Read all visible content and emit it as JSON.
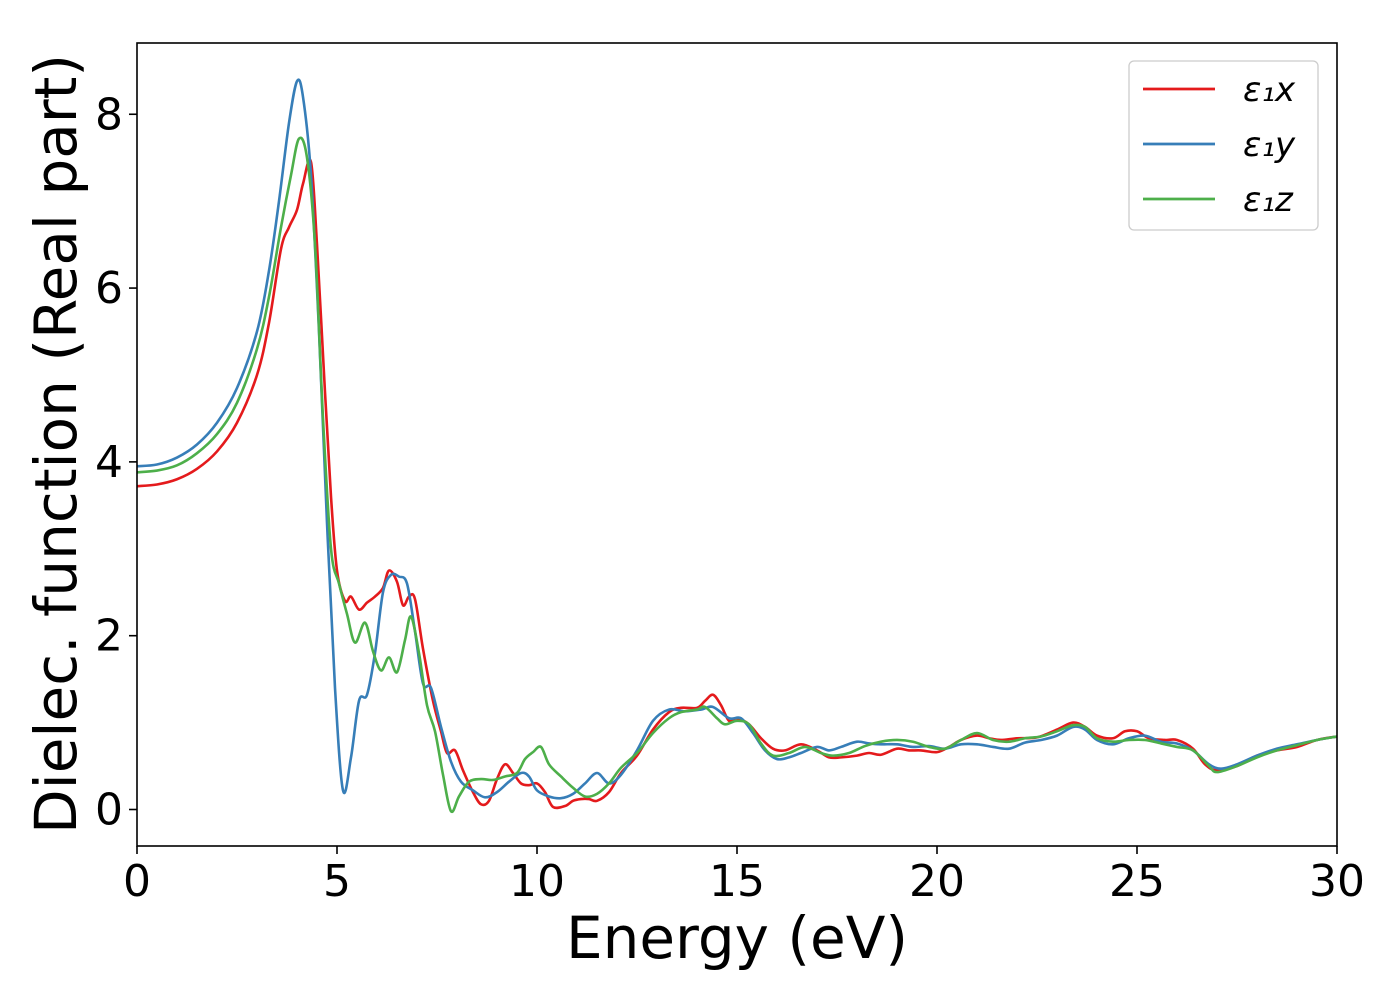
{
  "chart_data": {
    "type": "line",
    "xlabel": "Energy (eV)",
    "ylabel": "Dielec. function (Real part)",
    "xlim": [
      0,
      30
    ],
    "ylim": [
      -0.42,
      8.82
    ],
    "xticks": [
      0,
      5,
      10,
      15,
      20,
      25,
      30
    ],
    "yticks": [
      0,
      2,
      4,
      6,
      8
    ],
    "grid": false,
    "legend_position": "top-right",
    "series": [
      {
        "name": "ε₁x",
        "color": "#e41a1c",
        "points": [
          [
            0,
            3.72
          ],
          [
            0.5,
            3.74
          ],
          [
            1,
            3.8
          ],
          [
            1.5,
            3.92
          ],
          [
            2,
            4.12
          ],
          [
            2.5,
            4.45
          ],
          [
            3,
            5.0
          ],
          [
            3.3,
            5.6
          ],
          [
            3.6,
            6.45
          ],
          [
            3.8,
            6.7
          ],
          [
            4.0,
            6.9
          ],
          [
            4.15,
            7.2
          ],
          [
            4.35,
            7.45
          ],
          [
            4.5,
            6.5
          ],
          [
            4.7,
            4.8
          ],
          [
            4.85,
            3.6
          ],
          [
            5.0,
            2.75
          ],
          [
            5.2,
            2.4
          ],
          [
            5.35,
            2.45
          ],
          [
            5.55,
            2.3
          ],
          [
            5.75,
            2.38
          ],
          [
            5.95,
            2.45
          ],
          [
            6.15,
            2.55
          ],
          [
            6.3,
            2.75
          ],
          [
            6.5,
            2.62
          ],
          [
            6.65,
            2.35
          ],
          [
            6.8,
            2.45
          ],
          [
            6.95,
            2.42
          ],
          [
            7.15,
            1.85
          ],
          [
            7.4,
            1.25
          ],
          [
            7.6,
            0.9
          ],
          [
            7.75,
            0.65
          ],
          [
            7.95,
            0.68
          ],
          [
            8.15,
            0.45
          ],
          [
            8.4,
            0.2
          ],
          [
            8.6,
            0.06
          ],
          [
            8.8,
            0.1
          ],
          [
            9.0,
            0.35
          ],
          [
            9.2,
            0.52
          ],
          [
            9.4,
            0.42
          ],
          [
            9.6,
            0.3
          ],
          [
            9.8,
            0.28
          ],
          [
            10.0,
            0.3
          ],
          [
            10.2,
            0.2
          ],
          [
            10.4,
            0.03
          ],
          [
            10.7,
            0.04
          ],
          [
            10.9,
            0.1
          ],
          [
            11.1,
            0.12
          ],
          [
            11.3,
            0.12
          ],
          [
            11.5,
            0.1
          ],
          [
            11.8,
            0.2
          ],
          [
            12.1,
            0.42
          ],
          [
            12.5,
            0.62
          ],
          [
            12.9,
            0.92
          ],
          [
            13.3,
            1.12
          ],
          [
            13.6,
            1.17
          ],
          [
            14.0,
            1.17
          ],
          [
            14.2,
            1.25
          ],
          [
            14.4,
            1.32
          ],
          [
            14.6,
            1.2
          ],
          [
            14.8,
            1.02
          ],
          [
            15.0,
            1.05
          ],
          [
            15.3,
            0.98
          ],
          [
            15.6,
            0.82
          ],
          [
            15.9,
            0.7
          ],
          [
            16.2,
            0.68
          ],
          [
            16.6,
            0.75
          ],
          [
            17.0,
            0.68
          ],
          [
            17.3,
            0.6
          ],
          [
            17.6,
            0.6
          ],
          [
            18.0,
            0.62
          ],
          [
            18.3,
            0.65
          ],
          [
            18.6,
            0.63
          ],
          [
            19.0,
            0.7
          ],
          [
            19.3,
            0.68
          ],
          [
            19.6,
            0.68
          ],
          [
            20.0,
            0.66
          ],
          [
            20.3,
            0.72
          ],
          [
            20.6,
            0.8
          ],
          [
            21.0,
            0.85
          ],
          [
            21.3,
            0.82
          ],
          [
            21.6,
            0.8
          ],
          [
            22.0,
            0.82
          ],
          [
            22.5,
            0.83
          ],
          [
            23.0,
            0.92
          ],
          [
            23.4,
            1.0
          ],
          [
            23.7,
            0.95
          ],
          [
            24.0,
            0.85
          ],
          [
            24.4,
            0.82
          ],
          [
            24.7,
            0.9
          ],
          [
            25.0,
            0.9
          ],
          [
            25.3,
            0.82
          ],
          [
            25.7,
            0.8
          ],
          [
            26.0,
            0.8
          ],
          [
            26.4,
            0.7
          ],
          [
            26.7,
            0.52
          ],
          [
            27.0,
            0.45
          ],
          [
            27.5,
            0.5
          ],
          [
            28.0,
            0.62
          ],
          [
            28.5,
            0.68
          ],
          [
            29.0,
            0.72
          ],
          [
            29.5,
            0.8
          ],
          [
            30,
            0.84
          ]
        ]
      },
      {
        "name": "ε₁y",
        "color": "#377eb8",
        "points": [
          [
            0,
            3.95
          ],
          [
            0.5,
            3.97
          ],
          [
            1,
            4.05
          ],
          [
            1.5,
            4.2
          ],
          [
            2,
            4.45
          ],
          [
            2.5,
            4.85
          ],
          [
            3,
            5.5
          ],
          [
            3.3,
            6.2
          ],
          [
            3.55,
            7.0
          ],
          [
            3.8,
            7.9
          ],
          [
            4.0,
            8.38
          ],
          [
            4.15,
            8.2
          ],
          [
            4.35,
            7.3
          ],
          [
            4.55,
            5.5
          ],
          [
            4.75,
            3.3
          ],
          [
            4.95,
            1.4
          ],
          [
            5.15,
            0.22
          ],
          [
            5.35,
            0.6
          ],
          [
            5.55,
            1.25
          ],
          [
            5.75,
            1.32
          ],
          [
            5.95,
            1.8
          ],
          [
            6.15,
            2.5
          ],
          [
            6.35,
            2.7
          ],
          [
            6.55,
            2.68
          ],
          [
            6.75,
            2.6
          ],
          [
            6.95,
            2.05
          ],
          [
            7.15,
            1.45
          ],
          [
            7.35,
            1.4
          ],
          [
            7.6,
            0.95
          ],
          [
            7.85,
            0.55
          ],
          [
            8.1,
            0.32
          ],
          [
            8.4,
            0.22
          ],
          [
            8.7,
            0.14
          ],
          [
            9.0,
            0.2
          ],
          [
            9.3,
            0.32
          ],
          [
            9.6,
            0.42
          ],
          [
            9.8,
            0.38
          ],
          [
            10.0,
            0.22
          ],
          [
            10.3,
            0.15
          ],
          [
            10.6,
            0.13
          ],
          [
            10.9,
            0.18
          ],
          [
            11.2,
            0.3
          ],
          [
            11.5,
            0.42
          ],
          [
            11.8,
            0.3
          ],
          [
            12.1,
            0.4
          ],
          [
            12.5,
            0.68
          ],
          [
            12.9,
            1.02
          ],
          [
            13.3,
            1.15
          ],
          [
            13.7,
            1.13
          ],
          [
            14.1,
            1.15
          ],
          [
            14.4,
            1.18
          ],
          [
            14.8,
            1.05
          ],
          [
            15.1,
            1.05
          ],
          [
            15.4,
            0.88
          ],
          [
            15.7,
            0.68
          ],
          [
            16.0,
            0.58
          ],
          [
            16.3,
            0.6
          ],
          [
            16.6,
            0.65
          ],
          [
            17.0,
            0.72
          ],
          [
            17.3,
            0.68
          ],
          [
            17.6,
            0.72
          ],
          [
            18.0,
            0.78
          ],
          [
            18.3,
            0.76
          ],
          [
            18.6,
            0.75
          ],
          [
            19.0,
            0.75
          ],
          [
            19.4,
            0.72
          ],
          [
            19.8,
            0.73
          ],
          [
            20.2,
            0.7
          ],
          [
            20.6,
            0.75
          ],
          [
            21.0,
            0.75
          ],
          [
            21.4,
            0.72
          ],
          [
            21.8,
            0.7
          ],
          [
            22.2,
            0.77
          ],
          [
            22.6,
            0.8
          ],
          [
            23.0,
            0.85
          ],
          [
            23.4,
            0.95
          ],
          [
            23.7,
            0.92
          ],
          [
            24.0,
            0.8
          ],
          [
            24.4,
            0.75
          ],
          [
            24.8,
            0.82
          ],
          [
            25.2,
            0.85
          ],
          [
            25.6,
            0.78
          ],
          [
            26.0,
            0.76
          ],
          [
            26.4,
            0.68
          ],
          [
            26.8,
            0.52
          ],
          [
            27.1,
            0.47
          ],
          [
            27.5,
            0.52
          ],
          [
            28.0,
            0.62
          ],
          [
            28.5,
            0.7
          ],
          [
            29.0,
            0.75
          ],
          [
            29.5,
            0.8
          ],
          [
            30,
            0.84
          ]
        ]
      },
      {
        "name": "ε₁z",
        "color": "#4daf4a",
        "points": [
          [
            0,
            3.88
          ],
          [
            0.5,
            3.9
          ],
          [
            1,
            3.96
          ],
          [
            1.5,
            4.1
          ],
          [
            2,
            4.32
          ],
          [
            2.5,
            4.68
          ],
          [
            3,
            5.3
          ],
          [
            3.3,
            5.9
          ],
          [
            3.6,
            6.7
          ],
          [
            3.85,
            7.3
          ],
          [
            4.05,
            7.72
          ],
          [
            4.25,
            7.5
          ],
          [
            4.45,
            6.5
          ],
          [
            4.65,
            4.5
          ],
          [
            4.85,
            3.0
          ],
          [
            5.05,
            2.6
          ],
          [
            5.25,
            2.25
          ],
          [
            5.45,
            1.92
          ],
          [
            5.7,
            2.15
          ],
          [
            5.9,
            1.82
          ],
          [
            6.1,
            1.6
          ],
          [
            6.3,
            1.75
          ],
          [
            6.5,
            1.58
          ],
          [
            6.7,
            1.95
          ],
          [
            6.85,
            2.22
          ],
          [
            7.05,
            1.8
          ],
          [
            7.25,
            1.2
          ],
          [
            7.45,
            0.9
          ],
          [
            7.65,
            0.4
          ],
          [
            7.85,
            -0.02
          ],
          [
            8.05,
            0.15
          ],
          [
            8.3,
            0.32
          ],
          [
            8.6,
            0.35
          ],
          [
            8.9,
            0.34
          ],
          [
            9.2,
            0.38
          ],
          [
            9.5,
            0.42
          ],
          [
            9.7,
            0.58
          ],
          [
            9.9,
            0.66
          ],
          [
            10.1,
            0.72
          ],
          [
            10.3,
            0.52
          ],
          [
            10.6,
            0.38
          ],
          [
            10.9,
            0.25
          ],
          [
            11.2,
            0.15
          ],
          [
            11.5,
            0.18
          ],
          [
            11.8,
            0.3
          ],
          [
            12.1,
            0.48
          ],
          [
            12.5,
            0.65
          ],
          [
            12.9,
            0.88
          ],
          [
            13.3,
            1.05
          ],
          [
            13.6,
            1.12
          ],
          [
            14.0,
            1.15
          ],
          [
            14.2,
            1.18
          ],
          [
            14.5,
            1.05
          ],
          [
            14.7,
            0.98
          ],
          [
            15.0,
            1.02
          ],
          [
            15.3,
            0.98
          ],
          [
            15.6,
            0.76
          ],
          [
            15.9,
            0.62
          ],
          [
            16.3,
            0.65
          ],
          [
            16.7,
            0.72
          ],
          [
            17.1,
            0.65
          ],
          [
            17.4,
            0.62
          ],
          [
            17.8,
            0.65
          ],
          [
            18.2,
            0.73
          ],
          [
            18.6,
            0.78
          ],
          [
            19.0,
            0.8
          ],
          [
            19.4,
            0.78
          ],
          [
            19.8,
            0.72
          ],
          [
            20.2,
            0.7
          ],
          [
            20.6,
            0.8
          ],
          [
            21.0,
            0.88
          ],
          [
            21.4,
            0.8
          ],
          [
            21.8,
            0.78
          ],
          [
            22.2,
            0.82
          ],
          [
            22.6,
            0.84
          ],
          [
            23.0,
            0.9
          ],
          [
            23.4,
            0.97
          ],
          [
            23.7,
            0.95
          ],
          [
            24.0,
            0.82
          ],
          [
            24.4,
            0.78
          ],
          [
            24.8,
            0.8
          ],
          [
            25.2,
            0.8
          ],
          [
            25.6,
            0.76
          ],
          [
            26.0,
            0.72
          ],
          [
            26.4,
            0.68
          ],
          [
            26.8,
            0.5
          ],
          [
            27.0,
            0.43
          ],
          [
            27.5,
            0.5
          ],
          [
            28.0,
            0.6
          ],
          [
            28.5,
            0.68
          ],
          [
            29.0,
            0.74
          ],
          [
            29.5,
            0.8
          ],
          [
            30,
            0.84
          ]
        ]
      }
    ]
  }
}
